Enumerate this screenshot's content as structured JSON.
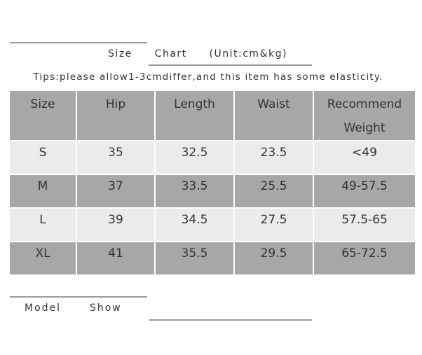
{
  "header": {
    "title": "Size  Chart  (Unit:cm&kg)",
    "tips": "Tips:please allow1-3cmdiffer,and this item has some elasticity."
  },
  "table": {
    "columns": [
      "Size",
      "Hip",
      "Length",
      "Waist",
      "Recommend Weight"
    ],
    "rows": [
      [
        "S",
        "35",
        "32.5",
        "23.5",
        "<49"
      ],
      [
        "M",
        "37",
        "33.5",
        "25.5",
        "49-57.5"
      ],
      [
        "L",
        "39",
        "34.5",
        "27.5",
        "57.5-65"
      ],
      [
        "XL",
        "41",
        "35.5",
        "29.5",
        "65-72.5"
      ]
    ]
  },
  "footer": {
    "model_show": "Model  Show"
  }
}
